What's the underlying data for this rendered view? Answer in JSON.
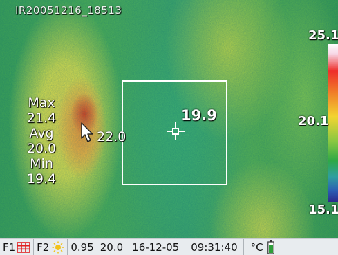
{
  "image": {
    "file_name": "IR20051216_18513"
  },
  "stats": {
    "max_label": "Max",
    "max_value": "21.4",
    "avg_label": "Avg",
    "avg_value": "20.0",
    "min_label": "Min",
    "min_value": "19.4"
  },
  "measurement": {
    "box_value": "19.9",
    "cursor_value": "22.0"
  },
  "scale": {
    "max": "25.1",
    "mid": "20.1",
    "min": "15.1"
  },
  "status_bar": {
    "f1_label": "F1",
    "f2_label": "F2",
    "emissivity": "0.95",
    "reflected_temp": "20.0",
    "date": "16-12-05",
    "time": "09:31:40",
    "unit": "°C"
  },
  "colors": {
    "hot_spot": "#d8431d",
    "overlay_text": "#ffffff",
    "status_bg": "#e8ecef",
    "grid_icon": "#e02020",
    "sun_icon": "#f2c21b",
    "battery": "#2e9e3a"
  },
  "icons": {
    "grid": "grid-icon",
    "sun": "sun-icon",
    "battery": "battery-icon",
    "crosshair": "crosshair-icon",
    "cursor": "cursor-arrow-icon"
  }
}
